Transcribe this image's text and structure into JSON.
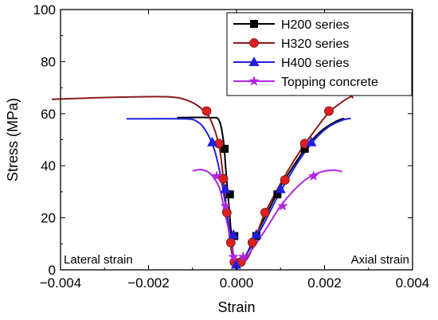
{
  "chart_data": {
    "type": "line",
    "xlabel": "Strain",
    "ylabel": "Stress (MPa)",
    "xlim": [
      -0.004,
      0.004
    ],
    "ylim": [
      0,
      100
    ],
    "x_ticks": [
      -0.004,
      -0.002,
      0.0,
      0.002,
      0.004
    ],
    "x_tick_labels": [
      "−0.004",
      "−0.002",
      "0.000",
      "0.002",
      "0.004"
    ],
    "y_ticks": [
      0,
      20,
      40,
      60,
      80,
      100
    ],
    "y_tick_labels": [
      "0",
      "20",
      "40",
      "60",
      "80",
      "100"
    ],
    "grid": false,
    "legend_position": "top-right",
    "annotations": [
      {
        "text": "Lateral strain",
        "position": "bottom-left"
      },
      {
        "text": "Axial strain",
        "position": "bottom-right"
      }
    ],
    "series": [
      {
        "name": "H200 series",
        "color": "#000000",
        "marker": "square",
        "lateral": [
          [
            -0.00135,
            58.5
          ],
          [
            -0.0006,
            58.5
          ],
          [
            -0.0004,
            57.5
          ],
          [
            -0.0003,
            50
          ],
          [
            -0.00025,
            40
          ],
          [
            -0.0002,
            30
          ],
          [
            -0.00015,
            20
          ],
          [
            -0.0001,
            10
          ],
          [
            -5e-05,
            3
          ],
          [
            0,
            0
          ]
        ],
        "lateral_markers": [
          [
            -0.00027,
            46.5
          ],
          [
            -0.00015,
            29
          ],
          [
            -5e-05,
            13
          ],
          [
            0,
            2
          ]
        ],
        "axial": [
          [
            0,
            0
          ],
          [
            0.0002,
            5
          ],
          [
            0.0004,
            12
          ],
          [
            0.0007,
            22
          ],
          [
            0.001,
            32
          ],
          [
            0.0013,
            40
          ],
          [
            0.0016,
            47.5
          ],
          [
            0.0019,
            53
          ],
          [
            0.0022,
            56.5
          ],
          [
            0.0024,
            58
          ],
          [
            0.00245,
            58
          ]
        ],
        "axial_markers": [
          [
            0.00045,
            13
          ],
          [
            0.00093,
            29
          ],
          [
            0.00155,
            46.5
          ]
        ]
      },
      {
        "name": "H320 series",
        "color": "#8B1A1A",
        "marker_color": "#dd1f1f",
        "marker": "circle",
        "lateral": [
          [
            -0.0042,
            65.5
          ],
          [
            -0.003,
            66.2
          ],
          [
            -0.0016,
            66.5
          ],
          [
            -0.0011,
            65
          ],
          [
            -0.0008,
            62
          ],
          [
            -0.0006,
            58
          ],
          [
            -0.0004,
            48
          ],
          [
            -0.0003,
            35
          ],
          [
            -0.00022,
            22
          ],
          [
            -0.00014,
            10
          ],
          [
            -6e-05,
            3
          ],
          [
            0,
            0
          ]
        ],
        "lateral_markers": [
          [
            -0.00068,
            61
          ],
          [
            -0.0004,
            48.5
          ],
          [
            -0.0003,
            35
          ],
          [
            -0.00022,
            22
          ],
          [
            -0.00013,
            10.5
          ],
          [
            -5e-05,
            3
          ]
        ],
        "axial": [
          [
            0,
            0
          ],
          [
            0.0001,
            2
          ],
          [
            0.0003,
            6
          ],
          [
            0.0006,
            20
          ],
          [
            0.0009,
            30
          ],
          [
            0.0012,
            39
          ],
          [
            0.0015,
            47
          ],
          [
            0.0018,
            54
          ],
          [
            0.0021,
            60.5
          ],
          [
            0.0024,
            64.5
          ],
          [
            0.0026,
            66.5
          ],
          [
            0.00265,
            66
          ]
        ],
        "axial_markers": [
          [
            0.0001,
            3
          ],
          [
            0.00036,
            10.5
          ],
          [
            0.00065,
            22
          ],
          [
            0.0011,
            34.5
          ],
          [
            0.00155,
            48.5
          ],
          [
            0.0021,
            61
          ]
        ]
      },
      {
        "name": "H400 series",
        "color": "#1f1fe0",
        "marker": "triangle",
        "lateral": [
          [
            -0.0025,
            58
          ],
          [
            -0.0012,
            58
          ],
          [
            -0.0009,
            57
          ],
          [
            -0.0007,
            53.5
          ],
          [
            -0.0005,
            46
          ],
          [
            -0.00035,
            35
          ],
          [
            -0.00025,
            25
          ],
          [
            -0.00015,
            15
          ],
          [
            -7e-05,
            5
          ],
          [
            0,
            0
          ]
        ],
        "lateral_markers": [
          [
            -0.00055,
            49
          ],
          [
            -0.00025,
            31
          ],
          [
            -7e-05,
            13.5
          ],
          [
            -1e-05,
            2
          ]
        ],
        "axial": [
          [
            0,
            0
          ],
          [
            0.0003,
            8
          ],
          [
            0.0006,
            17
          ],
          [
            0.0009,
            27
          ],
          [
            0.0012,
            36
          ],
          [
            0.0015,
            44
          ],
          [
            0.0018,
            50.5
          ],
          [
            0.0021,
            55
          ],
          [
            0.0024,
            57.5
          ],
          [
            0.0026,
            58.2
          ]
        ],
        "axial_markers": [
          [
            0.00045,
            13.5
          ],
          [
            0.001,
            31
          ],
          [
            0.0017,
            49
          ]
        ]
      },
      {
        "name": "Topping concrete",
        "color": "#b026e0",
        "marker": "star",
        "lateral": [
          [
            -0.001,
            38
          ],
          [
            -0.0008,
            38.5
          ],
          [
            -0.0006,
            37
          ],
          [
            -0.0004,
            32
          ],
          [
            -0.0003,
            25
          ],
          [
            -0.0002,
            17
          ],
          [
            -0.0001,
            9
          ],
          [
            -5e-05,
            4
          ],
          [
            0,
            0
          ]
        ],
        "lateral_markers": [
          [
            -0.00045,
            36
          ],
          [
            -0.00025,
            24.5
          ],
          [
            -7e-05,
            5
          ]
        ],
        "axial": [
          [
            0,
            0
          ],
          [
            0.0002,
            4
          ],
          [
            0.0004,
            9
          ],
          [
            0.0007,
            16.5
          ],
          [
            0.001,
            24.5
          ],
          [
            0.0013,
            30.5
          ],
          [
            0.0016,
            35
          ],
          [
            0.0019,
            37.5
          ],
          [
            0.0022,
            38.3
          ],
          [
            0.0024,
            37.7
          ]
        ],
        "axial_markers": [
          [
            0.00015,
            5
          ],
          [
            0.00105,
            24.5
          ],
          [
            0.00175,
            36
          ]
        ]
      }
    ]
  }
}
